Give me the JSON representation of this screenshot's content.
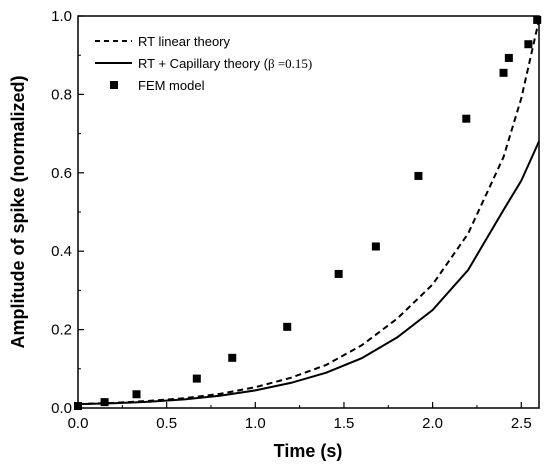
{
  "chart_data": {
    "type": "line",
    "xlabel": "Time (s)",
    "ylabel": "Amplitude of spike (normalized)",
    "xlim": [
      0,
      2.6
    ],
    "ylim": [
      0,
      1.0
    ],
    "xticks": [
      "0.0",
      "0.5",
      "1.0",
      "1.5",
      "2.0",
      "2.5"
    ],
    "yticks": [
      "0.0",
      "0.2",
      "0.4",
      "0.6",
      "0.8",
      "1.0"
    ],
    "legend_position": "top-left",
    "series": [
      {
        "name": "RT linear theory",
        "style": "dashed-line",
        "color": "#000000",
        "x": [
          0.0,
          0.2,
          0.4,
          0.6,
          0.8,
          1.0,
          1.2,
          1.4,
          1.6,
          1.8,
          2.0,
          2.2,
          2.4,
          2.5,
          2.6
        ],
        "y": [
          0.01,
          0.013,
          0.018,
          0.025,
          0.036,
          0.053,
          0.077,
          0.11,
          0.16,
          0.228,
          0.315,
          0.445,
          0.64,
          0.79,
          0.99
        ]
      },
      {
        "name_parts": [
          "RT + Capillary theory (",
          "β",
          " =0.15)"
        ],
        "style": "solid-line",
        "color": "#000000",
        "x": [
          0.0,
          0.2,
          0.4,
          0.6,
          0.8,
          1.0,
          1.2,
          1.4,
          1.6,
          1.8,
          2.0,
          2.2,
          2.4,
          2.5,
          2.6
        ],
        "y": [
          0.01,
          0.012,
          0.016,
          0.022,
          0.031,
          0.045,
          0.064,
          0.09,
          0.127,
          0.18,
          0.25,
          0.352,
          0.505,
          0.58,
          0.68
        ]
      },
      {
        "name": "FEM model",
        "style": "square-markers",
        "color": "#000000",
        "x": [
          0.0,
          0.15,
          0.33,
          0.67,
          0.87,
          1.18,
          1.47,
          1.68,
          1.92,
          2.19,
          2.4,
          2.43,
          2.54,
          2.59
        ],
        "y": [
          0.005,
          0.015,
          0.035,
          0.075,
          0.128,
          0.207,
          0.342,
          0.412,
          0.592,
          0.738,
          0.855,
          0.893,
          0.928,
          0.99
        ]
      }
    ]
  }
}
